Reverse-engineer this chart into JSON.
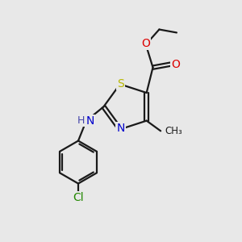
{
  "background_color": "#e8e8e8",
  "bond_color": "#1a1a1a",
  "atom_colors": {
    "S": "#b8b800",
    "N": "#0000cc",
    "O": "#dd0000",
    "Cl": "#228800",
    "C": "#1a1a1a",
    "H": "#4444aa"
  },
  "figsize": [
    3.0,
    3.0
  ],
  "dpi": 100
}
